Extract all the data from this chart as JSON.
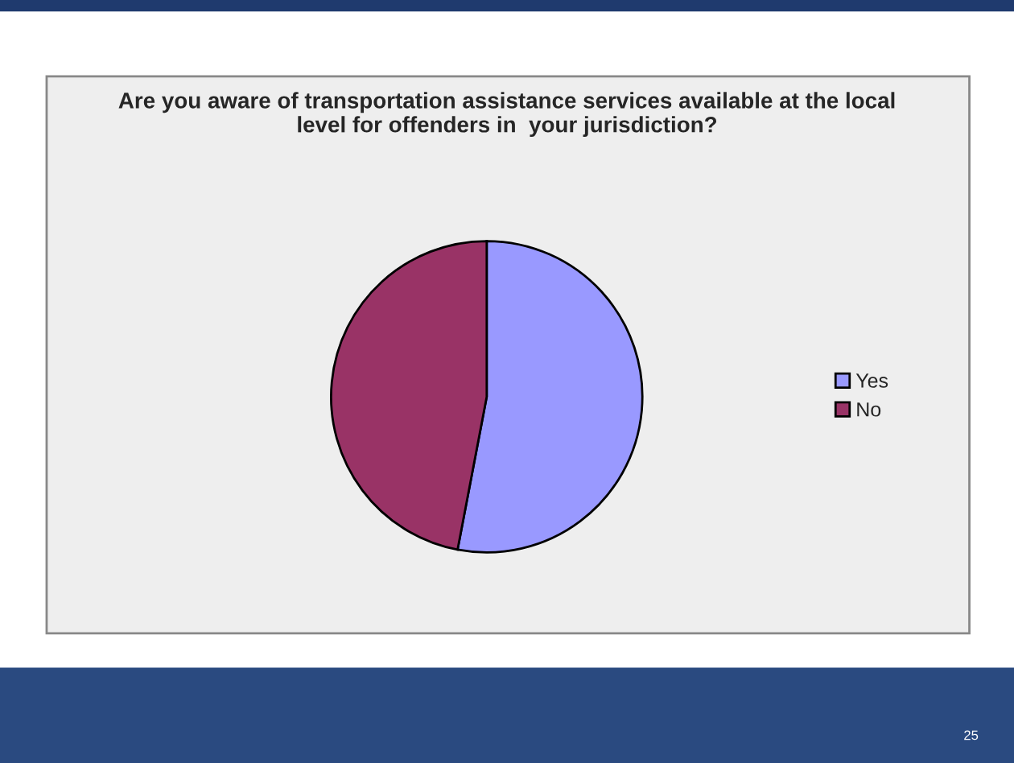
{
  "chart_data": {
    "type": "pie",
    "title": "Are you aware of transportation assistance services available at the local\nlevel for offenders in  your jurisdiction?",
    "categories": [
      "Yes",
      "No"
    ],
    "values": [
      53,
      47
    ],
    "colors": [
      "#9999ff",
      "#993366"
    ],
    "legend": "right",
    "annotations": [
      "25"
    ]
  }
}
